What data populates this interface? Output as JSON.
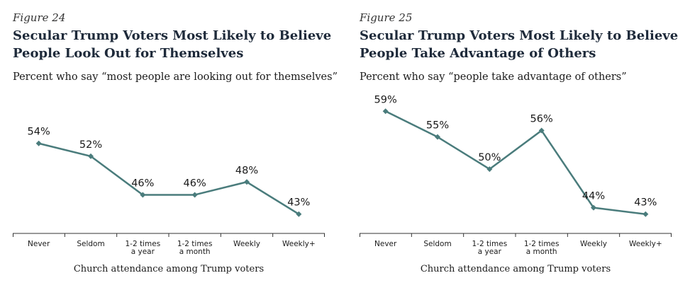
{
  "chart_data": [
    {
      "type": "line",
      "figure_label": "Figure 24",
      "title_line1": "Secular Trump Voters Most Likely to Believe",
      "title_line2": "People Look Out for Themselves",
      "subtitle": "Percent who say “most people are looking out for themselves”",
      "xlabel": "Church attendance among Trump voters",
      "ylabel": "",
      "categories": [
        [
          "Never"
        ],
        [
          "Seldom"
        ],
        [
          "1-2 times",
          "a year"
        ],
        [
          "1-2 times",
          "a month"
        ],
        [
          "Weekly"
        ],
        [
          "Weekly+"
        ]
      ],
      "series": [
        {
          "values": [
            54,
            52,
            46,
            46,
            48,
            43
          ],
          "labels": [
            "54%",
            "52%",
            "46%",
            "46%",
            "48%",
            "43%"
          ]
        }
      ],
      "ylim": [
        40,
        62
      ],
      "grid": false,
      "color": "#4a7c7c"
    },
    {
      "type": "line",
      "figure_label": "Figure 25",
      "title_line1": "Secular Trump Voters Most Likely to Believe",
      "title_line2": "People Take Advantage of Others",
      "subtitle": "Percent who say “people take advantage of others”",
      "xlabel": "Church attendance among Trump voters",
      "ylabel": "",
      "categories": [
        [
          "Never"
        ],
        [
          "Seldom"
        ],
        [
          "1-2 times",
          "a year"
        ],
        [
          "1-2 times",
          "a month"
        ],
        [
          "Weekly"
        ],
        [
          "Weekly+"
        ]
      ],
      "series": [
        {
          "values": [
            59,
            55,
            50,
            56,
            44,
            43
          ],
          "labels": [
            "59%",
            "55%",
            "50%",
            "56%",
            "44%",
            "43%"
          ]
        }
      ],
      "ylim": [
        40,
        62
      ],
      "grid": false,
      "color": "#4a7c7c"
    }
  ]
}
